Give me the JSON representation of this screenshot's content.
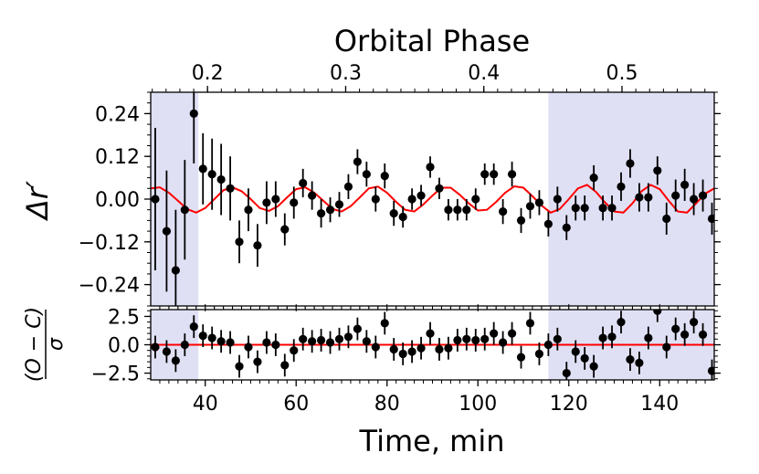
{
  "chart_data": [
    {
      "type": "scatter",
      "title": "Orbital Phase",
      "xlabel": "Time, min",
      "ylabel": "Δr′",
      "xlim": [
        28,
        152
      ],
      "ylim": [
        -0.3,
        0.3
      ],
      "yticks": [
        -0.24,
        -0.12,
        0.0,
        0.12,
        0.24
      ],
      "ytick_labels": [
        "−0.24",
        "−0.12",
        "0.00",
        "0.12",
        "0.24"
      ],
      "top_axis": {
        "label": "Orbital Phase",
        "ticks": [
          0.2,
          0.3,
          0.4,
          0.5
        ],
        "tick_labels": [
          "0.2",
          "0.3",
          "0.4",
          "0.5"
        ],
        "tick_times": [
          40.5,
          70.9,
          101.3,
          131.7
        ]
      },
      "shaded_regions": [
        [
          28,
          38.5
        ],
        [
          115.5,
          152
        ]
      ],
      "shade_color": "#e0e0f5",
      "data_color": "#000000",
      "model_color": "#ff0000",
      "series": [
        {
          "name": "data",
          "x": [
            29,
            31.5,
            33.5,
            35.5,
            37.5,
            39.5,
            41.5,
            43.5,
            45.5,
            47.5,
            49.5,
            51.5,
            53.5,
            55.5,
            57.5,
            59.5,
            61.5,
            63.5,
            65.5,
            67.5,
            69.5,
            71.5,
            73.5,
            75.5,
            77.5,
            79.5,
            81.5,
            83.5,
            85.5,
            87.5,
            89.5,
            91.5,
            93.5,
            95.5,
            97.5,
            99.5,
            101.5,
            103.5,
            105.5,
            107.5,
            109.5,
            111.5,
            113.5,
            115.5,
            117.5,
            119.5,
            121.5,
            123.5,
            125.5,
            127.5,
            129.5,
            131.5,
            133.5,
            135.5,
            137.5,
            139.5,
            141.5,
            143.5,
            145.5,
            147.5,
            149.5,
            151.5
          ],
          "y": [
            0.0,
            -0.09,
            -0.2,
            -0.03,
            0.24,
            0.085,
            0.07,
            0.055,
            0.03,
            -0.12,
            -0.03,
            -0.13,
            -0.01,
            0.0,
            -0.085,
            -0.01,
            0.045,
            0.01,
            -0.04,
            -0.03,
            -0.015,
            0.035,
            0.105,
            0.07,
            0.0,
            0.065,
            -0.04,
            -0.05,
            0.0,
            0.01,
            0.09,
            0.03,
            -0.03,
            -0.03,
            -0.03,
            0.0,
            0.07,
            0.07,
            -0.035,
            0.07,
            -0.06,
            -0.02,
            -0.01,
            -0.07,
            0.0,
            -0.08,
            -0.025,
            -0.025,
            0.06,
            -0.025,
            -0.025,
            0.035,
            0.1,
            0.005,
            0.005,
            0.08,
            -0.055,
            0.01,
            0.04,
            0.0,
            0.01,
            -0.055
          ],
          "yerr": [
            0.2,
            0.17,
            0.17,
            0.14,
            0.14,
            0.1,
            0.1,
            0.1,
            0.09,
            0.06,
            0.06,
            0.06,
            0.06,
            0.05,
            0.045,
            0.045,
            0.04,
            0.04,
            0.04,
            0.035,
            0.035,
            0.035,
            0.035,
            0.035,
            0.035,
            0.035,
            0.035,
            0.03,
            0.03,
            0.03,
            0.03,
            0.03,
            0.03,
            0.03,
            0.03,
            0.03,
            0.03,
            0.03,
            0.035,
            0.035,
            0.035,
            0.035,
            0.035,
            0.035,
            0.035,
            0.035,
            0.035,
            0.035,
            0.035,
            0.035,
            0.035,
            0.04,
            0.04,
            0.04,
            0.04,
            0.04,
            0.045,
            0.045,
            0.045,
            0.045,
            0.045,
            0.045
          ]
        },
        {
          "name": "model",
          "x": [
            28,
            30,
            32,
            34,
            36,
            38,
            40,
            42,
            44,
            46,
            48,
            50,
            52,
            54,
            56,
            58,
            60,
            62,
            64,
            66,
            68,
            70,
            72,
            74,
            76,
            78,
            80,
            82,
            84,
            86,
            88,
            90,
            92,
            94,
            96,
            98,
            100,
            102,
            104,
            106,
            108,
            110,
            112,
            114,
            116,
            118,
            120,
            122,
            124,
            126,
            128,
            130,
            132,
            134,
            136,
            138,
            140,
            142,
            144,
            146,
            148,
            150,
            152
          ],
          "y": [
            0.03,
            0.033,
            0.018,
            -0.005,
            -0.028,
            -0.038,
            -0.025,
            0.0,
            0.025,
            0.033,
            0.022,
            0.0,
            -0.025,
            -0.033,
            -0.02,
            0.005,
            0.028,
            0.033,
            0.018,
            -0.005,
            -0.028,
            -0.035,
            -0.02,
            0.005,
            0.03,
            0.035,
            0.018,
            -0.008,
            -0.03,
            -0.035,
            -0.015,
            0.01,
            0.032,
            0.032,
            0.012,
            -0.012,
            -0.032,
            -0.03,
            -0.008,
            0.018,
            0.036,
            0.032,
            0.008,
            -0.018,
            -0.038,
            -0.028,
            0.0,
            0.03,
            0.04,
            0.02,
            -0.01,
            -0.035,
            -0.038,
            -0.012,
            0.022,
            0.04,
            0.028,
            -0.005,
            -0.035,
            -0.038,
            -0.012,
            0.015,
            0.03
          ]
        }
      ]
    },
    {
      "type": "scatter",
      "title": "",
      "xlabel": "Time, min",
      "ylabel": "(O − C)/σ",
      "ylabel_numerator": "(O − C)",
      "ylabel_denominator": "σ",
      "xlim": [
        28,
        152
      ],
      "ylim": [
        -3.1,
        3.1
      ],
      "xticks": [
        40,
        60,
        80,
        100,
        120,
        140
      ],
      "xtick_labels": [
        "40",
        "60",
        "80",
        "100",
        "120",
        "140"
      ],
      "yticks": [
        -2.5,
        0.0,
        2.5
      ],
      "ytick_labels": [
        "−2.5",
        "0.0",
        "2.5"
      ],
      "shaded_regions": [
        [
          28,
          38.5
        ],
        [
          115.5,
          152
        ]
      ],
      "series": [
        {
          "name": "residuals",
          "x": [
            29,
            31.5,
            33.5,
            35.5,
            37.5,
            39.5,
            41.5,
            43.5,
            45.5,
            47.5,
            49.5,
            51.5,
            53.5,
            55.5,
            57.5,
            59.5,
            61.5,
            63.5,
            65.5,
            67.5,
            69.5,
            71.5,
            73.5,
            75.5,
            77.5,
            79.5,
            81.5,
            83.5,
            85.5,
            87.5,
            89.5,
            91.5,
            93.5,
            95.5,
            97.5,
            99.5,
            101.5,
            103.5,
            105.5,
            107.5,
            109.5,
            111.5,
            113.5,
            115.5,
            117.5,
            119.5,
            121.5,
            123.5,
            125.5,
            127.5,
            129.5,
            131.5,
            133.5,
            135.5,
            137.5,
            139.5,
            141.5,
            143.5,
            145.5,
            147.5,
            149.5,
            151.5
          ],
          "y": [
            -0.2,
            -0.6,
            -1.4,
            0.0,
            1.6,
            0.8,
            0.6,
            0.3,
            0.2,
            -1.9,
            -0.2,
            -1.5,
            0.2,
            0.0,
            -1.8,
            -0.5,
            0.5,
            0.3,
            0.4,
            0.2,
            0.5,
            0.7,
            1.4,
            0.3,
            -0.2,
            1.9,
            -0.4,
            -0.8,
            -0.6,
            -0.3,
            1.0,
            -0.4,
            -0.3,
            0.4,
            0.5,
            0.4,
            0.5,
            1.0,
            0.2,
            1.0,
            -1.1,
            1.9,
            -0.8,
            0.0,
            0.5,
            -2.5,
            -0.6,
            -1.2,
            -1.9,
            0.6,
            0.7,
            2.0,
            -1.3,
            -1.6,
            0.6,
            3.0,
            -0.2,
            1.4,
            0.9,
            2.0,
            0.9,
            -2.3
          ],
          "yerr": [
            1.0,
            1.0,
            1.0,
            1.0,
            1.0,
            1.0,
            1.0,
            1.0,
            1.0,
            1.0,
            1.0,
            1.0,
            1.0,
            1.0,
            1.0,
            1.0,
            1.0,
            1.0,
            1.0,
            1.0,
            1.0,
            1.0,
            1.0,
            1.0,
            1.0,
            1.0,
            1.0,
            1.0,
            1.0,
            1.0,
            1.0,
            1.0,
            1.0,
            1.0,
            1.0,
            1.0,
            1.0,
            1.0,
            1.0,
            1.0,
            1.0,
            1.0,
            1.0,
            1.0,
            1.0,
            1.0,
            1.0,
            1.0,
            1.0,
            1.0,
            1.0,
            1.0,
            1.0,
            1.0,
            1.0,
            1.0,
            1.0,
            1.0,
            1.0,
            1.0,
            1.0,
            1.0
          ]
        },
        {
          "name": "zero-line",
          "x": [
            28,
            152
          ],
          "y": [
            0.0,
            0.0
          ]
        }
      ]
    }
  ]
}
